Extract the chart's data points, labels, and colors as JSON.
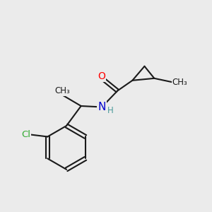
{
  "background_color": "#ebebeb",
  "bond_color": "#1a1a1a",
  "bond_width": 1.5,
  "atom_colors": {
    "O": "#ff0000",
    "N": "#0000cd",
    "Cl": "#33aa33",
    "C": "#1a1a1a",
    "H": "#4a9a9a"
  },
  "font_size_atom": 10,
  "font_size_small": 8.5
}
